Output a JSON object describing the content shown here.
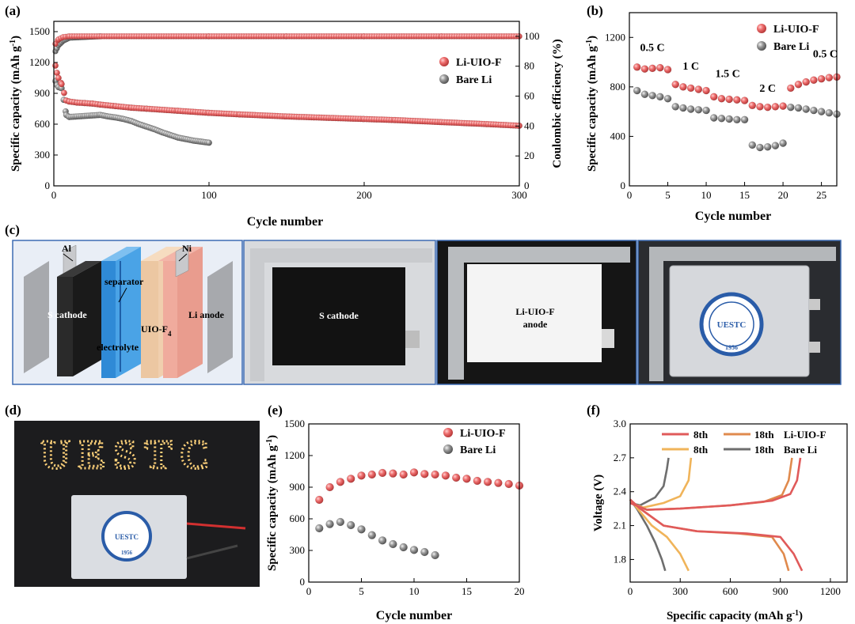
{
  "panel_labels": {
    "a": "(a)",
    "b": "(b)",
    "c": "(c)",
    "d": "(d)",
    "e": "(e)",
    "f": "(f)"
  },
  "colors": {
    "li": "#e8676b",
    "bare": "#8e8e8e",
    "li_line": "#e05a5a",
    "bare_line": "#6e6e6e",
    "li18": "#e08a4d",
    "bare8": "#f0b45a"
  },
  "schematic": {
    "al": "Al",
    "ni": "Ni",
    "separator": "separator",
    "s_cathode": "S cathode",
    "li_anode": "Li anode",
    "uio": "UIO-F",
    "uio_sub": "4",
    "electrolyte": "electrolyte"
  },
  "photos": {
    "cathode": "S cathode",
    "anode_l1": "Li-UIO-F",
    "anode_l2": "anode",
    "logo_text": "UESTC",
    "logo_year": "1956",
    "led_text": "UESTC"
  },
  "chart_data": [
    {
      "id": "a",
      "type": "scatter",
      "xlabel": "Cycle number",
      "ylabel": "Specific capacity (mAh g-1)",
      "y2label": "Coulombic efficiency (%)",
      "xlim": [
        0,
        300
      ],
      "ylim": [
        0,
        1600
      ],
      "y2lim": [
        0,
        110
      ],
      "xticks": [
        0,
        100,
        200,
        300
      ],
      "yticks": [
        0,
        300,
        600,
        900,
        1200,
        1500
      ],
      "y2ticks": [
        0,
        20,
        40,
        60,
        80,
        100
      ],
      "legend": [
        "Li-UIO-F",
        "Bare Li"
      ],
      "series": [
        {
          "name": "Li-UIO-F",
          "color": "#e8676b",
          "x": [
            1,
            2,
            3,
            5,
            8,
            10,
            15,
            20,
            25,
            30,
            40,
            50,
            60,
            80,
            100,
            120,
            150,
            180,
            200,
            220,
            250,
            280,
            300
          ],
          "y": [
            1170,
            1100,
            1050,
            990,
            830,
            820,
            810,
            805,
            800,
            790,
            775,
            760,
            750,
            730,
            710,
            695,
            675,
            660,
            650,
            640,
            620,
            600,
            585
          ]
        },
        {
          "name": "Bare Li",
          "color": "#8e8e8e",
          "x": [
            1,
            2,
            3,
            5,
            8,
            10,
            15,
            20,
            25,
            30,
            35,
            40,
            45,
            50,
            55,
            60,
            65,
            70,
            75,
            80,
            85,
            90,
            95,
            100
          ],
          "y": [
            1020,
            980,
            960,
            950,
            690,
            670,
            675,
            680,
            685,
            690,
            675,
            665,
            650,
            630,
            600,
            575,
            550,
            520,
            495,
            470,
            455,
            440,
            430,
            420
          ]
        },
        {
          "name": "CE Li-UIO-F",
          "color": "#e8676b",
          "axis": "y2",
          "x": [
            1,
            3,
            6,
            10,
            50,
            100,
            150,
            200,
            250,
            300
          ],
          "y": [
            95,
            98,
            99.5,
            100,
            100,
            100,
            100,
            100,
            100,
            100
          ]
        },
        {
          "name": "CE Bare Li",
          "color": "#8e8e8e",
          "axis": "y2",
          "x": [
            1,
            3,
            6,
            10,
            20,
            30
          ],
          "y": [
            90,
            94,
            97,
            99,
            99.5,
            100
          ]
        }
      ]
    },
    {
      "id": "b",
      "type": "scatter",
      "xlabel": "Cycle number",
      "ylabel": "Specific capacity (mAh g-1)",
      "xlim": [
        0,
        27
      ],
      "ylim": [
        0,
        1400
      ],
      "xticks": [
        0,
        5,
        10,
        15,
        20,
        25
      ],
      "yticks": [
        0,
        400,
        800,
        1200
      ],
      "legend": [
        "Li-UIO-F",
        "Bare Li"
      ],
      "annotations": [
        {
          "text": "0.5 C",
          "x": 3,
          "y": 1090
        },
        {
          "text": "1 C",
          "x": 8,
          "y": 940
        },
        {
          "text": "1.5 C",
          "x": 12.8,
          "y": 880
        },
        {
          "text": "2 C",
          "x": 18,
          "y": 760
        },
        {
          "text": "0.5 C",
          "x": 25.5,
          "y": 1040
        }
      ],
      "series": [
        {
          "name": "Li-UIO-F",
          "color": "#e8676b",
          "x": [
            1,
            2,
            3,
            4,
            5,
            6,
            7,
            8,
            9,
            10,
            11,
            12,
            13,
            14,
            15,
            16,
            17,
            18,
            19,
            20,
            21,
            22,
            23,
            24,
            25,
            26,
            27
          ],
          "y": [
            960,
            945,
            950,
            955,
            940,
            820,
            800,
            790,
            780,
            770,
            720,
            705,
            700,
            695,
            690,
            650,
            640,
            635,
            640,
            645,
            790,
            820,
            840,
            855,
            865,
            875,
            880
          ]
        },
        {
          "name": "Bare Li",
          "color": "#8e8e8e",
          "x": [
            1,
            2,
            3,
            4,
            5,
            6,
            7,
            8,
            9,
            10,
            11,
            12,
            13,
            14,
            15,
            16,
            17,
            18,
            19,
            20,
            21,
            22,
            23,
            24,
            25,
            26,
            27
          ],
          "y": [
            770,
            740,
            730,
            720,
            705,
            640,
            630,
            620,
            615,
            610,
            550,
            545,
            540,
            535,
            535,
            330,
            310,
            315,
            325,
            345,
            635,
            630,
            620,
            610,
            600,
            590,
            580
          ]
        }
      ]
    },
    {
      "id": "e",
      "type": "scatter",
      "xlabel": "Cycle number",
      "ylabel": "Specific capacity (mAh g-1)",
      "xlim": [
        0,
        20
      ],
      "ylim": [
        0,
        1500
      ],
      "xticks": [
        0,
        5,
        10,
        15,
        20
      ],
      "yticks": [
        0,
        300,
        600,
        900,
        1200,
        1500
      ],
      "legend": [
        "Li-UIO-F",
        "Bare Li"
      ],
      "series": [
        {
          "name": "Li-UIO-F",
          "color": "#e8676b",
          "x": [
            1,
            2,
            3,
            4,
            5,
            6,
            7,
            8,
            9,
            10,
            11,
            12,
            13,
            14,
            15,
            16,
            17,
            18,
            19,
            20
          ],
          "y": [
            780,
            900,
            950,
            980,
            1010,
            1020,
            1035,
            1030,
            1020,
            1040,
            1025,
            1020,
            1010,
            990,
            980,
            960,
            950,
            940,
            930,
            915
          ]
        },
        {
          "name": "Bare Li",
          "color": "#8e8e8e",
          "x": [
            1,
            2,
            3,
            4,
            5,
            6,
            7,
            8,
            9,
            10,
            11,
            12
          ],
          "y": [
            510,
            550,
            570,
            540,
            500,
            445,
            395,
            360,
            330,
            305,
            285,
            255
          ]
        }
      ]
    },
    {
      "id": "f",
      "type": "line",
      "xlabel": "Specific capacity (mAh g-1)",
      "ylabel": "Voltage (V)",
      "xlim": [
        0,
        1300
      ],
      "ylim": [
        1.6,
        3.0
      ],
      "xticks": [
        0,
        300,
        600,
        900,
        1200
      ],
      "yticks": [
        1.8,
        2.1,
        2.4,
        2.7,
        3.0
      ],
      "legend": [
        "8th",
        "18th",
        "Li-UIO-F",
        "8th",
        "18th",
        "Bare Li"
      ],
      "series": [
        {
          "name": "Li-UIO-F 8th",
          "color": "#e05a5a",
          "charge": [
            [
              0,
              2.3
            ],
            [
              100,
              2.24
            ],
            [
              300,
              2.25
            ],
            [
              600,
              2.28
            ],
            [
              850,
              2.32
            ],
            [
              960,
              2.38
            ],
            [
              1000,
              2.5
            ],
            [
              1020,
              2.7
            ]
          ],
          "discharge": [
            [
              0,
              2.33
            ],
            [
              60,
              2.25
            ],
            [
              200,
              2.1
            ],
            [
              400,
              2.05
            ],
            [
              700,
              2.03
            ],
            [
              900,
              2.0
            ],
            [
              980,
              1.85
            ],
            [
              1030,
              1.7
            ]
          ]
        },
        {
          "name": "Li-UIO-F 18th",
          "color": "#e08a4d",
          "charge": [
            [
              0,
              2.3
            ],
            [
              100,
              2.24
            ],
            [
              300,
              2.25
            ],
            [
              600,
              2.28
            ],
            [
              800,
              2.31
            ],
            [
              910,
              2.37
            ],
            [
              950,
              2.5
            ],
            [
              970,
              2.7
            ]
          ],
          "discharge": [
            [
              0,
              2.33
            ],
            [
              60,
              2.25
            ],
            [
              200,
              2.1
            ],
            [
              400,
              2.05
            ],
            [
              650,
              2.03
            ],
            [
              850,
              2.0
            ],
            [
              920,
              1.85
            ],
            [
              950,
              1.7
            ]
          ]
        },
        {
          "name": "Bare Li 8th",
          "color": "#f0b45a",
          "charge": [
            [
              0,
              2.3
            ],
            [
              80,
              2.26
            ],
            [
              200,
              2.3
            ],
            [
              300,
              2.36
            ],
            [
              350,
              2.5
            ],
            [
              365,
              2.7
            ]
          ],
          "discharge": [
            [
              0,
              2.33
            ],
            [
              50,
              2.24
            ],
            [
              130,
              2.1
            ],
            [
              220,
              2.0
            ],
            [
              300,
              1.85
            ],
            [
              350,
              1.7
            ]
          ]
        },
        {
          "name": "Bare Li 18th",
          "color": "#6e6e6e",
          "charge": [
            [
              0,
              2.3
            ],
            [
              60,
              2.28
            ],
            [
              150,
              2.35
            ],
            [
              200,
              2.45
            ],
            [
              220,
              2.6
            ],
            [
              230,
              2.7
            ]
          ],
          "discharge": [
            [
              0,
              2.33
            ],
            [
              40,
              2.25
            ],
            [
              100,
              2.1
            ],
            [
              150,
              1.95
            ],
            [
              190,
              1.8
            ],
            [
              210,
              1.7
            ]
          ]
        }
      ]
    }
  ]
}
